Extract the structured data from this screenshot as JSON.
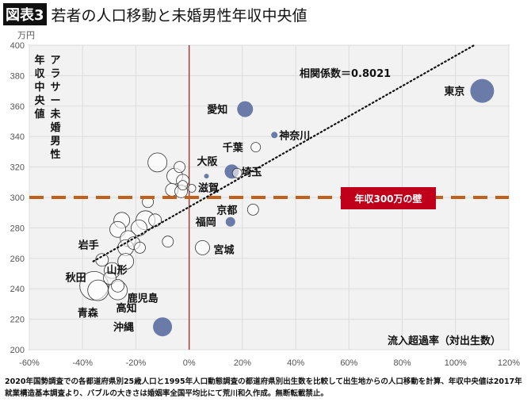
{
  "title": {
    "badge": "図表3",
    "text": "若者の人口移動と未婚男性年収中央値"
  },
  "unit": "万円",
  "note": "2020年国勢調査での各都道府県別25歳人口と1995年人口動態調査の都道府県別出生数を比較して出生地からの人口移動を計算、年収中央値は2017年就業構造基本調査より、バブルの大きさは婚姻率全国平均比にて荒川和久作成。無断転載禁止。",
  "chart_data": {
    "type": "bubble",
    "xlabel": "流入超過率（対出生数）",
    "ylabel": [
      "年収中央値",
      "アラサー未婚男性"
    ],
    "xlim": [
      -60,
      120
    ],
    "ylim": [
      200,
      400
    ],
    "xticks": [
      "-60%",
      "-40%",
      "-20%",
      "0%",
      "20%",
      "40%",
      "60%",
      "80%",
      "100%",
      "120%"
    ],
    "yticks": [
      "200",
      "220",
      "240",
      "260",
      "280",
      "300",
      "320",
      "340",
      "360",
      "380",
      "400"
    ],
    "grid": true,
    "annotation": "相関係数＝0.8021",
    "threshold": {
      "y": 300,
      "label": "年収300万の壁",
      "color": "#c0601a",
      "label_bg": "#c0001a"
    },
    "trendline": {
      "from": [
        -36,
        258
      ],
      "to": [
        107,
        400
      ]
    },
    "colors": {
      "filled": "#6b7ba8",
      "hollow": "#ffffff"
    },
    "labeled_points": [
      {
        "name": "東京",
        "x": 110,
        "y": 370,
        "size": 15,
        "filled": true
      },
      {
        "name": "愛知",
        "x": 21,
        "y": 358,
        "size": 10,
        "filled": true
      },
      {
        "name": "神奈川",
        "x": 32,
        "y": 341,
        "size": 4,
        "filled": true
      },
      {
        "name": "千葉",
        "x": 25,
        "y": 333,
        "size": 6,
        "filled": false
      },
      {
        "name": "大阪",
        "x": 6.5,
        "y": 314,
        "size": 3,
        "filled": true
      },
      {
        "name": "埼玉",
        "x": 16,
        "y": 317,
        "size": 9,
        "filled": true
      },
      {
        "name": "滋賀",
        "x": 1,
        "y": 306,
        "size": 5,
        "filled": false
      },
      {
        "name": "京都",
        "x": 24,
        "y": 292,
        "size": 7,
        "filled": false
      },
      {
        "name": "福岡",
        "x": 15.5,
        "y": 284,
        "size": 6,
        "filled": true
      },
      {
        "name": "宮城",
        "x": 5,
        "y": 267,
        "size": 9,
        "filled": false
      },
      {
        "name": "沖縄",
        "x": -10,
        "y": 215,
        "size": 12,
        "filled": true
      },
      {
        "name": "岩手",
        "x": -32.7,
        "y": 259,
        "size": 8,
        "filled": false
      },
      {
        "name": "秋田",
        "x": -35.7,
        "y": 242,
        "size": 18,
        "filled": false
      },
      {
        "name": "山形",
        "x": -29.8,
        "y": 247,
        "size": 8,
        "filled": false
      },
      {
        "name": "鹿児島",
        "x": -26.8,
        "y": 242,
        "size": 8,
        "filled": false
      },
      {
        "name": "高知",
        "x": -26.8,
        "y": 239,
        "size": 12,
        "filled": false
      },
      {
        "name": "青森",
        "x": -34.2,
        "y": 239,
        "size": 13,
        "filled": false
      }
    ],
    "other_points": [
      {
        "x": 18,
        "y": 316,
        "size": 6
      },
      {
        "x": -11.9,
        "y": 323,
        "size": 12
      },
      {
        "x": -3.6,
        "y": 320,
        "size": 7
      },
      {
        "x": -5.4,
        "y": 314,
        "size": 10
      },
      {
        "x": -2.4,
        "y": 311,
        "size": 8
      },
      {
        "x": -2.4,
        "y": 308,
        "size": 6
      },
      {
        "x": -6.5,
        "y": 305,
        "size": 8
      },
      {
        "x": -3,
        "y": 304,
        "size": 8
      },
      {
        "x": -15.5,
        "y": 297,
        "size": 7
      },
      {
        "x": -25.3,
        "y": 285,
        "size": 10
      },
      {
        "x": -16.4,
        "y": 285,
        "size": 12
      },
      {
        "x": -12.8,
        "y": 285,
        "size": 8
      },
      {
        "x": -26.8,
        "y": 279,
        "size": 10
      },
      {
        "x": -18.8,
        "y": 280,
        "size": 10
      },
      {
        "x": -8,
        "y": 271,
        "size": 7
      },
      {
        "x": -22.9,
        "y": 273,
        "size": 10
      },
      {
        "x": -20.8,
        "y": 270,
        "size": 8
      },
      {
        "x": -23.8,
        "y": 267,
        "size": 10
      },
      {
        "x": -18.5,
        "y": 267,
        "size": 7
      },
      {
        "x": -23.8,
        "y": 258,
        "size": 10
      },
      {
        "x": -28.9,
        "y": 252,
        "size": 10
      }
    ]
  }
}
